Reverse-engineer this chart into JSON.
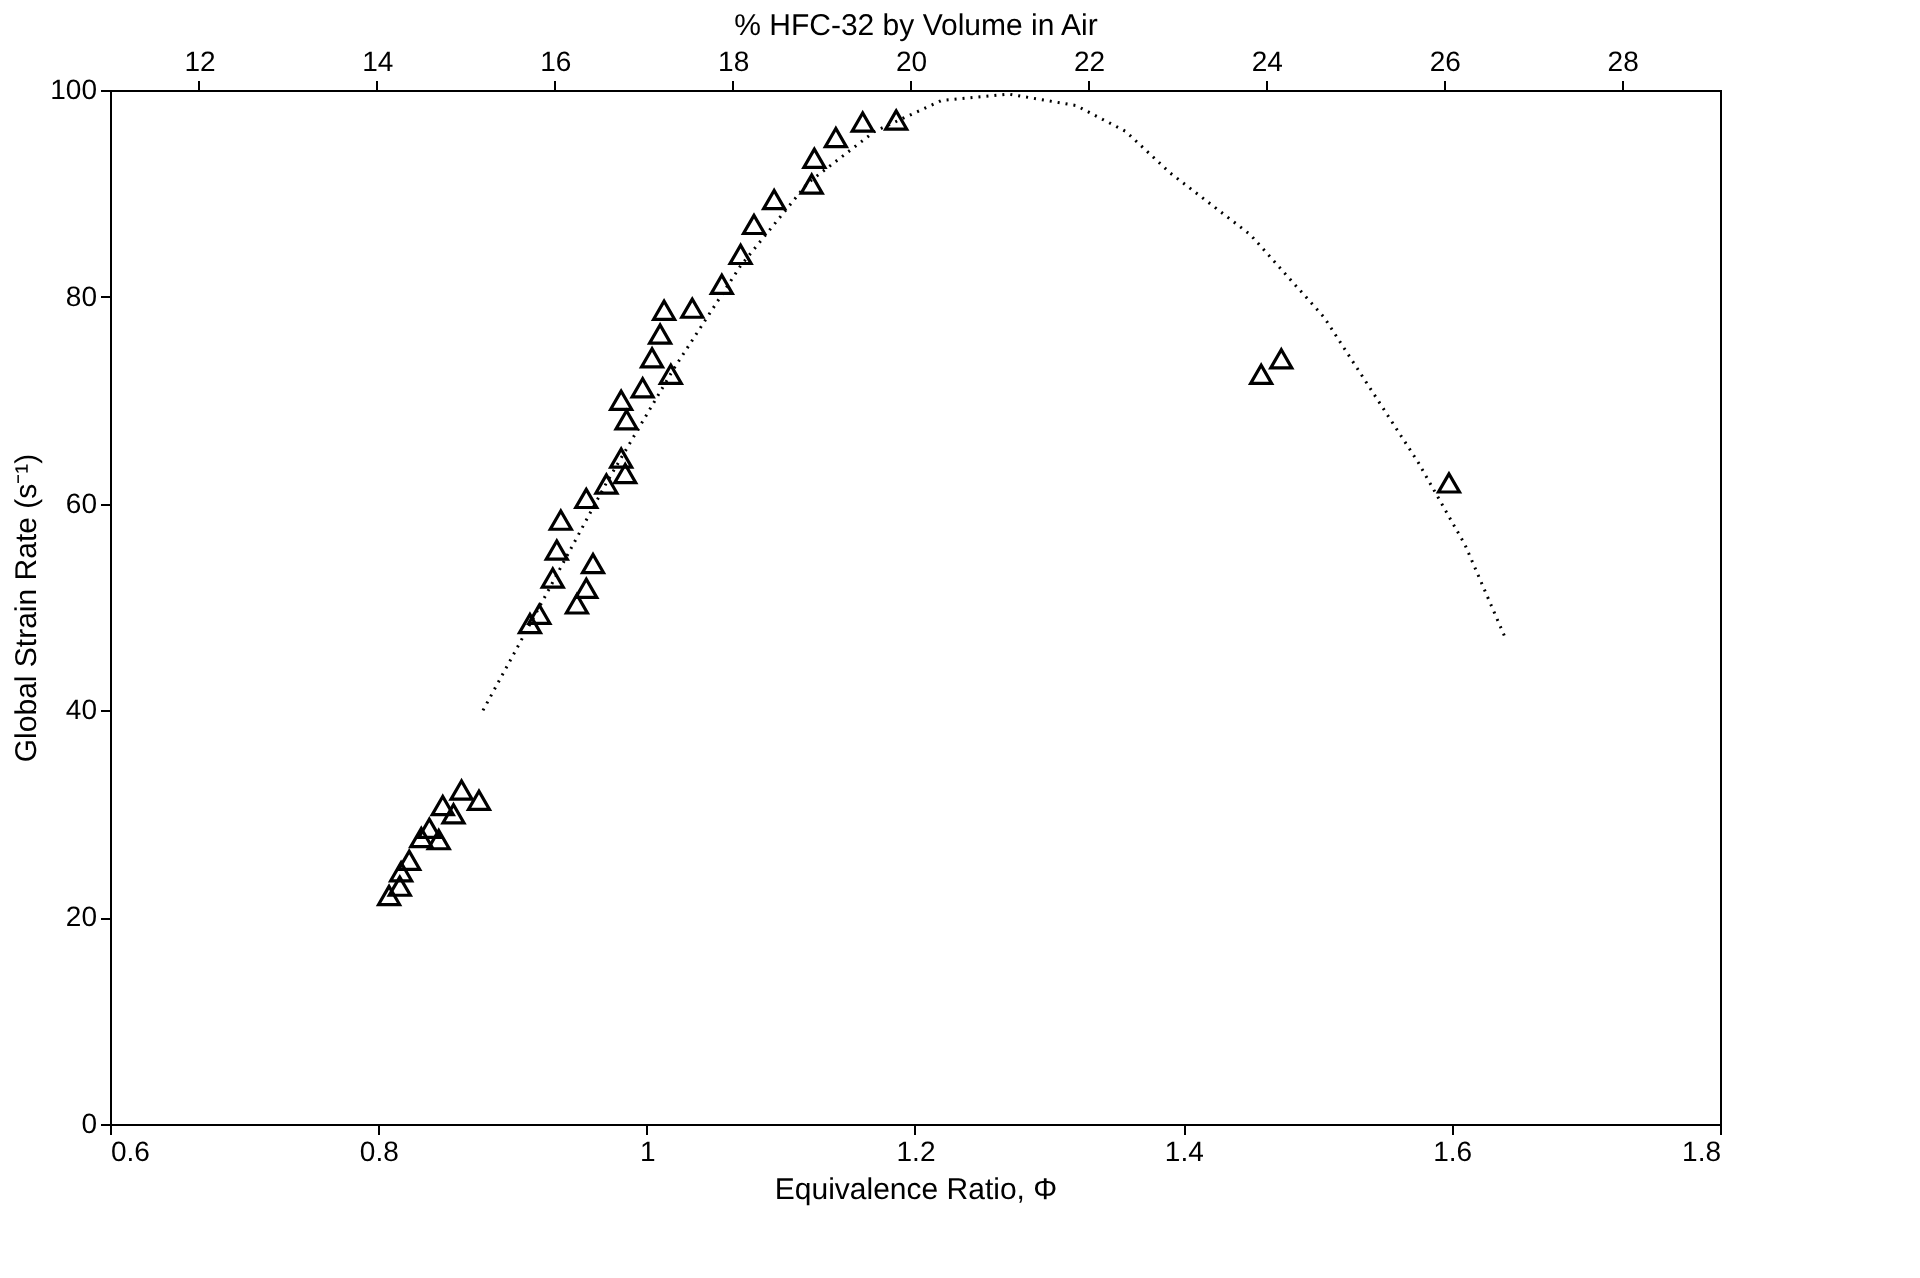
{
  "chart_data": {
    "type": "scatter",
    "xlabel": "Equivalence Ratio, Φ",
    "ylabel": "Global Strain Rate (s⁻¹)",
    "x2label": "% HFC-32 by Volume in Air",
    "xlim": [
      0.6,
      1.8
    ],
    "xticks": [
      0.6,
      0.8,
      1,
      1.2,
      1.4,
      1.6,
      1.8
    ],
    "ylim": [
      0,
      100
    ],
    "yticks": [
      0,
      20,
      40,
      60,
      80,
      100
    ],
    "x2lim": [
      11.0,
      29.1
    ],
    "x2ticks": [
      12,
      14,
      16,
      18,
      20,
      22,
      24,
      26,
      28
    ],
    "grid": false,
    "series": [
      {
        "marker": "triangle",
        "color": "#000000",
        "x": [
          0.808,
          0.816,
          0.817,
          0.823,
          0.832,
          0.838,
          0.845,
          0.848,
          0.856,
          0.862,
          0.875,
          0.913,
          0.92,
          0.948,
          0.955,
          0.96,
          0.93,
          0.933,
          0.936,
          0.955,
          0.97,
          0.984,
          0.981,
          0.985,
          0.981,
          0.997,
          1.018,
          1.004,
          1.01,
          1.013,
          1.034,
          1.056,
          1.07,
          1.08,
          1.095,
          1.123,
          1.125,
          1.141,
          1.161,
          1.186,
          1.458,
          1.473,
          1.598
        ],
        "values": [
          22.1,
          23.0,
          24.4,
          25.5,
          27.7,
          28.6,
          27.5,
          30.8,
          30.0,
          32.3,
          31.3,
          48.4,
          49.3,
          50.3,
          51.8,
          54.2,
          52.8,
          55.5,
          58.4,
          60.5,
          61.9,
          62.9,
          64.4,
          68.1,
          70.0,
          71.2,
          72.5,
          74.1,
          76.4,
          78.7,
          78.9,
          81.2,
          84.1,
          87.0,
          89.4,
          90.9,
          93.4,
          95.4,
          96.9,
          97.1,
          72.5,
          74.0,
          62.0
        ]
      },
      {
        "type": "line",
        "line_style": "dotted",
        "color": "#000000",
        "x": [
          0.878,
          0.92,
          0.97,
          1.02,
          1.07,
          1.12,
          1.17,
          1.22,
          1.27,
          1.32,
          1.357,
          1.39,
          1.45,
          1.505,
          1.54,
          1.575,
          1.61,
          1.64
        ],
        "values": [
          40,
          50,
          62,
          73,
          83,
          91,
          96,
          99,
          99.6,
          98.5,
          96,
          92,
          86,
          78,
          71,
          64,
          56,
          47
        ]
      }
    ]
  }
}
